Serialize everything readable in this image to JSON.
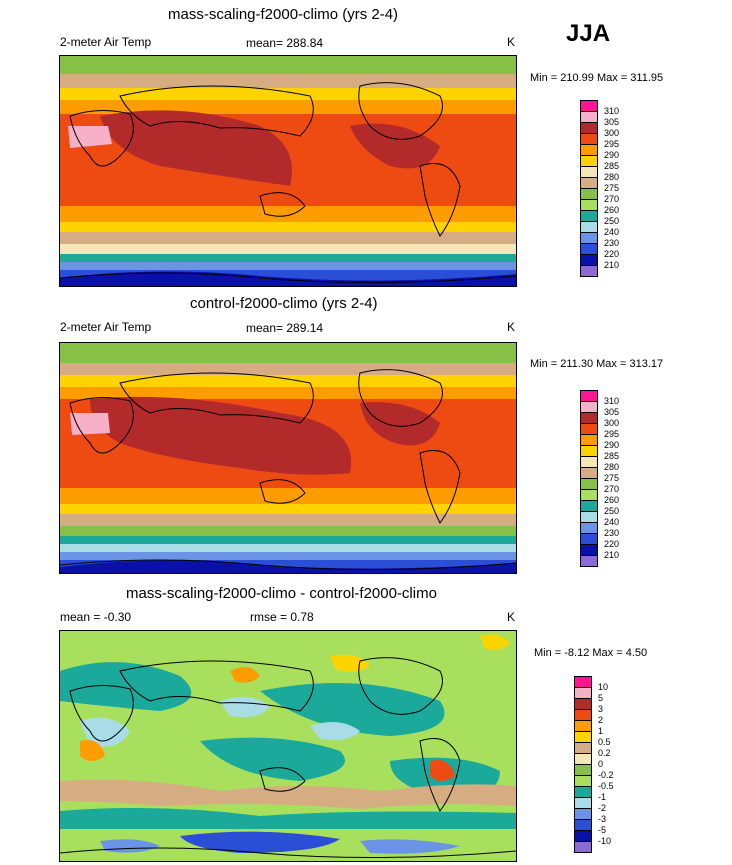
{
  "season": "JJA",
  "panels": [
    {
      "title": "mass-scaling-f2000-climo (yrs 2-4)",
      "left_label": "2-meter Air Temp",
      "center_label": "mean= 288.84",
      "unit": "K",
      "minmax": "Min = 210.99 Max = 311.95",
      "colorbar": {
        "labels": [
          "310",
          "305",
          "300",
          "295",
          "290",
          "285",
          "280",
          "275",
          "270",
          "260",
          "250",
          "240",
          "230",
          "220",
          "210"
        ],
        "colors": [
          "#ff1493",
          "#f6b1c8",
          "#b22a2a",
          "#ee4b12",
          "#ff9c00",
          "#ffd300",
          "#f3e6b7",
          "#d6ad82",
          "#86c047",
          "#a8e05e",
          "#1aa99a",
          "#a8dde7",
          "#6c94e6",
          "#2a4ed6",
          "#0a10a8",
          "#8c6bd6"
        ]
      }
    },
    {
      "title": "control-f2000-climo (yrs 2-4)",
      "left_label": "2-meter Air Temp",
      "center_label": "mean= 289.14",
      "unit": "K",
      "minmax": "Min = 211.30 Max = 313.17",
      "colorbar": {
        "labels": [
          "310",
          "305",
          "300",
          "295",
          "290",
          "285",
          "280",
          "275",
          "270",
          "260",
          "250",
          "240",
          "230",
          "220",
          "210"
        ],
        "colors": [
          "#ff1493",
          "#f6b1c8",
          "#b22a2a",
          "#ee4b12",
          "#ff9c00",
          "#ffd300",
          "#f3e6b7",
          "#d6ad82",
          "#86c047",
          "#a8e05e",
          "#1aa99a",
          "#a8dde7",
          "#6c94e6",
          "#2a4ed6",
          "#0a10a8",
          "#8c6bd6"
        ]
      }
    },
    {
      "title": "mass-scaling-f2000-climo - control-f2000-climo",
      "left_label": "mean =  -0.30",
      "center_label": "rmse =   0.78",
      "unit": "K",
      "minmax": "Min =  -8.12 Max =   4.50",
      "colorbar": {
        "labels": [
          "10",
          "5",
          "3",
          "2",
          "1",
          "0.5",
          "0.2",
          "0",
          "-0.2",
          "-0.5",
          "-1",
          "-2",
          "-3",
          "-5",
          "-10"
        ],
        "colors": [
          "#ff1493",
          "#f6b1c8",
          "#b22a2a",
          "#ee4b12",
          "#ff9c00",
          "#ffd300",
          "#d6ad82",
          "#f3e6b7",
          "#86c047",
          "#a8e05e",
          "#1aa99a",
          "#a8dde7",
          "#6c94e6",
          "#2a4ed6",
          "#0a10a8",
          "#8c6bd6"
        ]
      }
    }
  ]
}
